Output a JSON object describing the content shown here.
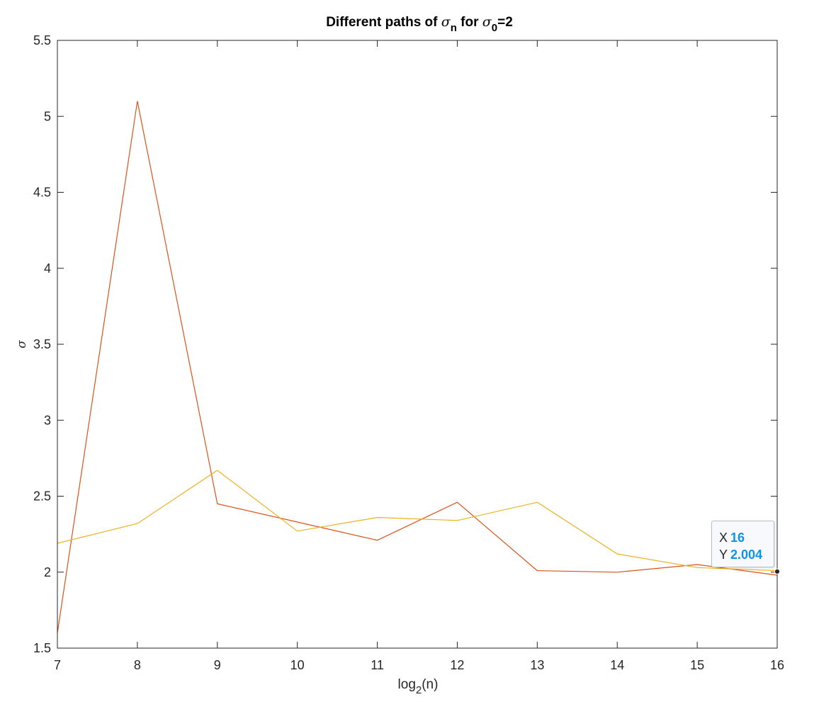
{
  "chart_data": {
    "type": "line",
    "title": "Different paths of σn for σ0=2",
    "title_parts": {
      "prefix": "Different paths of ",
      "sym1": "σ",
      "sub1": "n",
      "middle": " for ",
      "sym2": "σ",
      "sub2": "0",
      "suffix": "=2"
    },
    "xlabel": "log2(n)",
    "xlabel_parts": {
      "base": "log",
      "sub": "2",
      "rest": "(n)"
    },
    "ylabel": "σ",
    "xlim": [
      7,
      16
    ],
    "ylim": [
      1.5,
      5.5
    ],
    "xticks": [
      7,
      8,
      9,
      10,
      11,
      12,
      13,
      14,
      15,
      16
    ],
    "xtick_labels": [
      "7",
      "8",
      "9",
      "10",
      "11",
      "12",
      "13",
      "14",
      "15",
      "16"
    ],
    "yticks": [
      1.5,
      2,
      2.5,
      3,
      3.5,
      4,
      4.5,
      5,
      5.5
    ],
    "ytick_labels": [
      "1.5",
      "2",
      "2.5",
      "3",
      "3.5",
      "4",
      "4.5",
      "5",
      "5.5"
    ],
    "grid": false,
    "box": true,
    "x": [
      7,
      8,
      9,
      10,
      11,
      12,
      13,
      14,
      15,
      16
    ],
    "series": [
      {
        "color": "#d95319",
        "values": [
          1.6,
          5.1,
          2.45,
          2.33,
          2.21,
          2.46,
          2.01,
          2.0,
          2.05,
          1.98
        ]
      },
      {
        "color": "#edb120",
        "values": [
          2.19,
          2.32,
          2.67,
          2.27,
          2.36,
          2.34,
          2.46,
          2.12,
          2.03,
          2.01
        ]
      }
    ],
    "datatip": {
      "x_label": "X",
      "x_value": "16",
      "y_label": "Y",
      "y_value": "2.004",
      "x": 16,
      "y": 2.004
    }
  },
  "colors": {
    "axis": "#262626",
    "background": "#ffffff",
    "datatip_value": "#0d94e6",
    "marker": "#262626"
  }
}
